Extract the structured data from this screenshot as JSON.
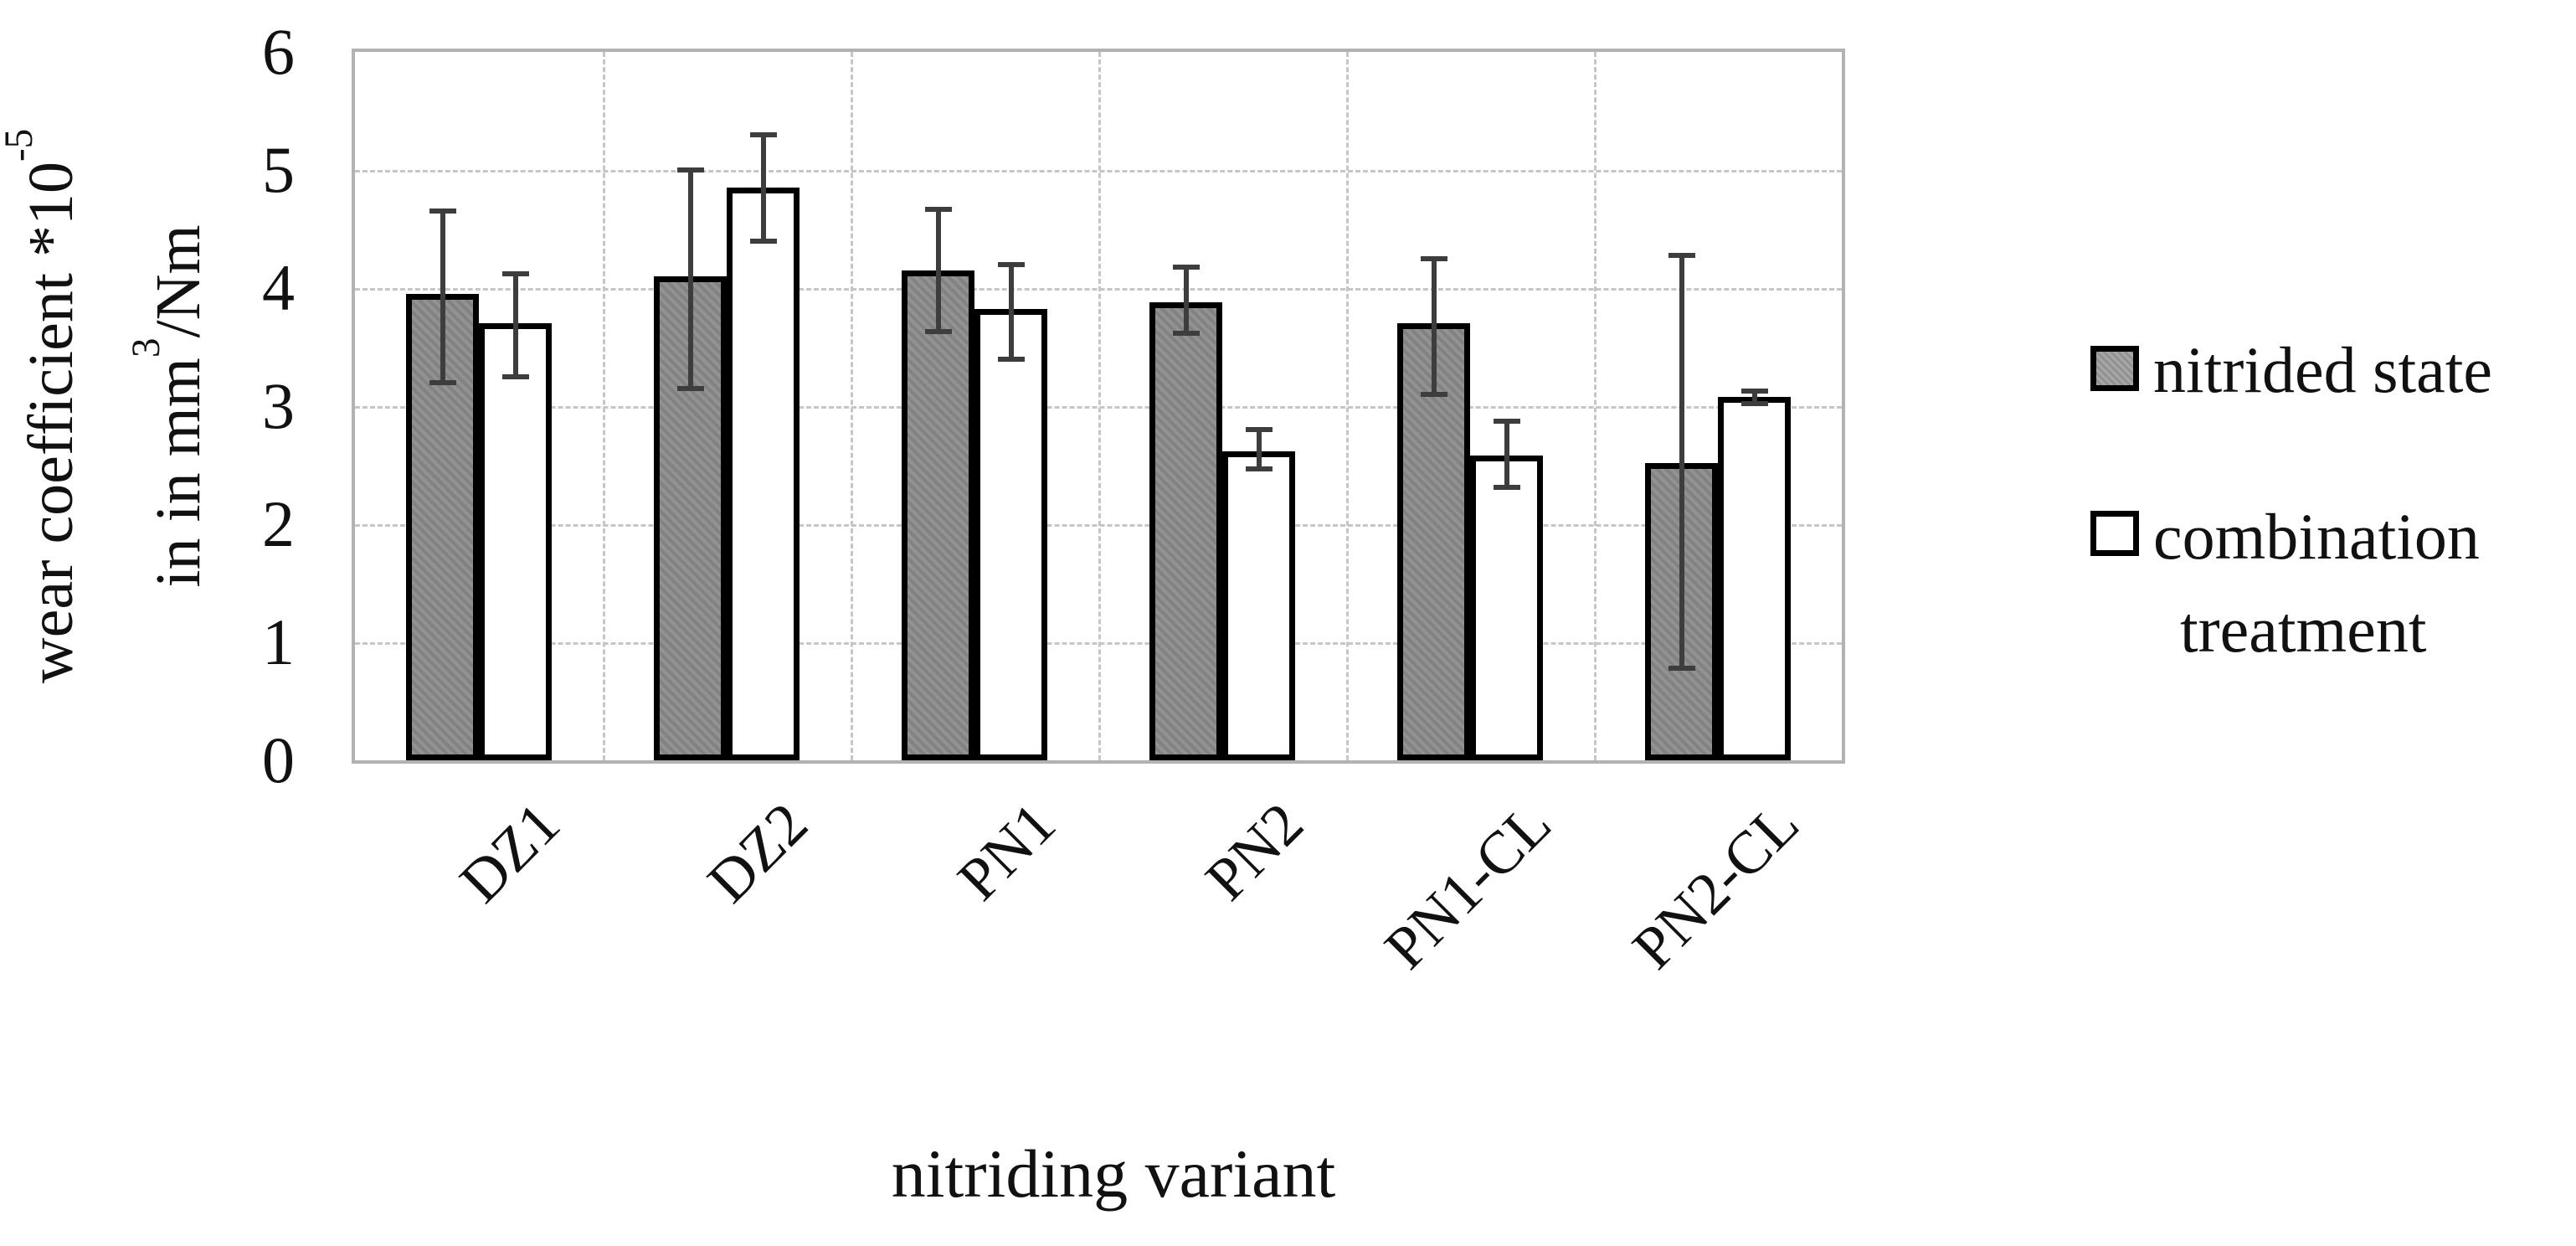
{
  "chart_data": {
    "type": "bar",
    "title": "",
    "categories": [
      "DZ1",
      "DZ2",
      "PN1",
      "PN2",
      "PN1-CL",
      "PN2-CL"
    ],
    "series": [
      {
        "name": "nitrided state",
        "fill": "#8a8a8a",
        "values": [
          3.95,
          4.1,
          4.15,
          3.88,
          3.7,
          2.52
        ],
        "error_low": [
          3.2,
          3.15,
          3.63,
          3.62,
          3.1,
          0.78
        ],
        "error_high": [
          4.65,
          5.0,
          4.67,
          4.18,
          4.25,
          4.28
        ]
      },
      {
        "name": "combination treatment",
        "fill": "#ffffff",
        "values": [
          3.7,
          4.85,
          3.82,
          2.62,
          2.58,
          3.08
        ],
        "error_low": [
          3.25,
          4.4,
          3.4,
          2.47,
          2.31,
          3.02
        ],
        "error_high": [
          4.12,
          5.3,
          4.2,
          2.8,
          2.87,
          3.13
        ]
      }
    ],
    "xlabel": "nitriding variant",
    "ylabel": "wear coefficient *10^-5 in in mm^3/Nm",
    "ylabel_lines": [
      {
        "pre": "wear coefficient *10",
        "sup": "-5",
        "post": ""
      },
      {
        "pre": "in in mm",
        "sup": "3",
        "post": "/Nm"
      }
    ],
    "ylim": [
      0,
      6
    ],
    "yticks": [
      "0",
      "1",
      "2",
      "3",
      "4",
      "5",
      "6"
    ],
    "grid": true,
    "legend_position": "right"
  },
  "legend": {
    "items": [
      {
        "label": "nitrided state",
        "swatch": "gray-filled-square"
      },
      {
        "label": "combination treatment",
        "line1": "combination",
        "line2": "treatment",
        "swatch": "white-square"
      }
    ]
  },
  "colors": {
    "bar_gray": "#8a8a8a",
    "bar_white": "#ffffff",
    "bar_border": "#000000",
    "error_bar": "#3d3d3d",
    "gridline": "#c6c6c6",
    "axis_border": "#b2b2b2",
    "text": "#111111"
  }
}
